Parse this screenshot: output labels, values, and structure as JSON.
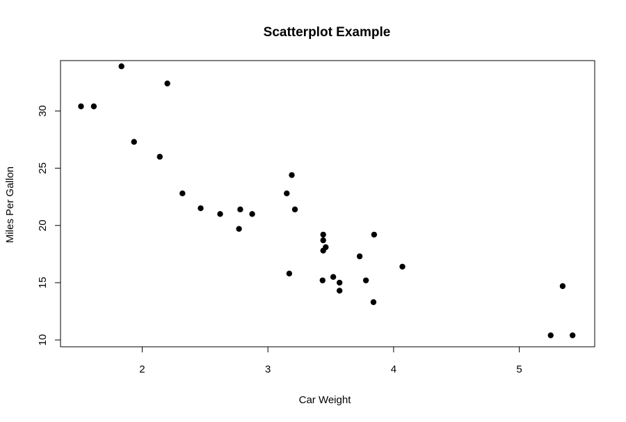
{
  "chart_data": {
    "type": "scatter",
    "title": "Scatterplot Example",
    "xlabel": "Car Weight",
    "ylabel": "Miles Per Gallon",
    "xlim": [
      1.35,
      5.6
    ],
    "ylim": [
      9.4,
      34.4
    ],
    "x_ticks": [
      2,
      3,
      4,
      5
    ],
    "y_ticks": [
      10,
      15,
      20,
      25,
      30
    ],
    "grid": false,
    "legend": "none",
    "point_color": "#000000",
    "points": [
      {
        "x": 1.513,
        "y": 30.4
      },
      {
        "x": 1.615,
        "y": 30.4
      },
      {
        "x": 1.835,
        "y": 33.9
      },
      {
        "x": 1.935,
        "y": 27.3
      },
      {
        "x": 2.14,
        "y": 26.0
      },
      {
        "x": 2.2,
        "y": 32.4
      },
      {
        "x": 2.32,
        "y": 22.8
      },
      {
        "x": 2.465,
        "y": 21.5
      },
      {
        "x": 2.62,
        "y": 21.0
      },
      {
        "x": 2.77,
        "y": 19.7
      },
      {
        "x": 2.78,
        "y": 21.4
      },
      {
        "x": 2.875,
        "y": 21.0
      },
      {
        "x": 3.15,
        "y": 22.8
      },
      {
        "x": 3.17,
        "y": 15.8
      },
      {
        "x": 3.19,
        "y": 24.4
      },
      {
        "x": 3.215,
        "y": 21.4
      },
      {
        "x": 3.435,
        "y": 15.2
      },
      {
        "x": 3.44,
        "y": 18.7
      },
      {
        "x": 3.44,
        "y": 19.2
      },
      {
        "x": 3.44,
        "y": 17.8
      },
      {
        "x": 3.46,
        "y": 18.1
      },
      {
        "x": 3.52,
        "y": 15.5
      },
      {
        "x": 3.57,
        "y": 15.0
      },
      {
        "x": 3.57,
        "y": 14.3
      },
      {
        "x": 3.73,
        "y": 17.3
      },
      {
        "x": 3.78,
        "y": 15.2
      },
      {
        "x": 3.84,
        "y": 13.3
      },
      {
        "x": 3.845,
        "y": 19.2
      },
      {
        "x": 4.07,
        "y": 16.4
      },
      {
        "x": 5.25,
        "y": 10.4
      },
      {
        "x": 5.345,
        "y": 14.7
      },
      {
        "x": 5.424,
        "y": 10.4
      }
    ]
  }
}
